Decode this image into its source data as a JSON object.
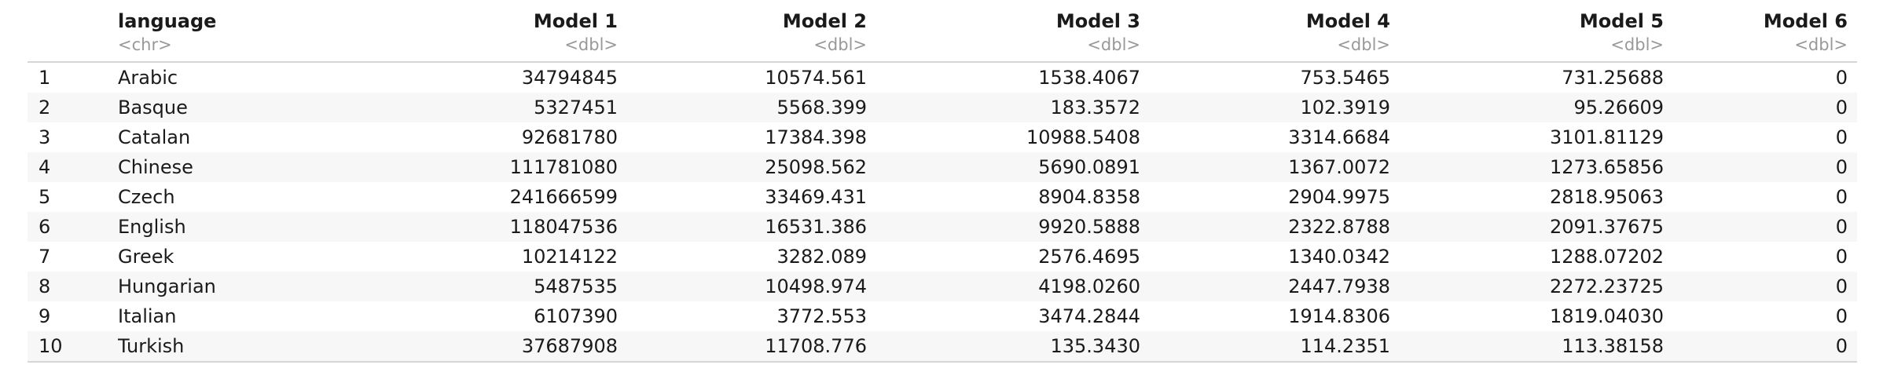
{
  "table": {
    "columns": [
      {
        "name": "",
        "type": "",
        "align": "left"
      },
      {
        "name": "language",
        "type": "<chr>",
        "align": "left"
      },
      {
        "name": "Model 1",
        "type": "<dbl>",
        "align": "right"
      },
      {
        "name": "Model 2",
        "type": "<dbl>",
        "align": "right"
      },
      {
        "name": "Model 3",
        "type": "<dbl>",
        "align": "right"
      },
      {
        "name": "Model 4",
        "type": "<dbl>",
        "align": "right"
      },
      {
        "name": "Model 5",
        "type": "<dbl>",
        "align": "right"
      },
      {
        "name": "Model 6",
        "type": "<dbl>",
        "align": "right"
      }
    ],
    "rows": [
      [
        "1",
        "Arabic",
        "34794845",
        "10574.561",
        "1538.4067",
        "753.5465",
        "731.25688",
        "0"
      ],
      [
        "2",
        "Basque",
        "5327451",
        "5568.399",
        "183.3572",
        "102.3919",
        "95.26609",
        "0"
      ],
      [
        "3",
        "Catalan",
        "92681780",
        "17384.398",
        "10988.5408",
        "3314.6684",
        "3101.81129",
        "0"
      ],
      [
        "4",
        "Chinese",
        "111781080",
        "25098.562",
        "5690.0891",
        "1367.0072",
        "1273.65856",
        "0"
      ],
      [
        "5",
        "Czech",
        "241666599",
        "33469.431",
        "8904.8358",
        "2904.9975",
        "2818.95063",
        "0"
      ],
      [
        "6",
        "English",
        "118047536",
        "16531.386",
        "9920.5888",
        "2322.8788",
        "2091.37675",
        "0"
      ],
      [
        "7",
        "Greek",
        "10214122",
        "3282.089",
        "2576.4695",
        "1340.0342",
        "1288.07202",
        "0"
      ],
      [
        "8",
        "Hungarian",
        "5487535",
        "10498.974",
        "4198.0260",
        "2447.7938",
        "2272.23725",
        "0"
      ],
      [
        "9",
        "Italian",
        "6107390",
        "3772.553",
        "3474.2844",
        "1914.8306",
        "1819.04030",
        "0"
      ],
      [
        "10",
        "Turkish",
        "37687908",
        "11708.776",
        "135.3430",
        "114.2351",
        "113.38158",
        "0"
      ]
    ]
  }
}
